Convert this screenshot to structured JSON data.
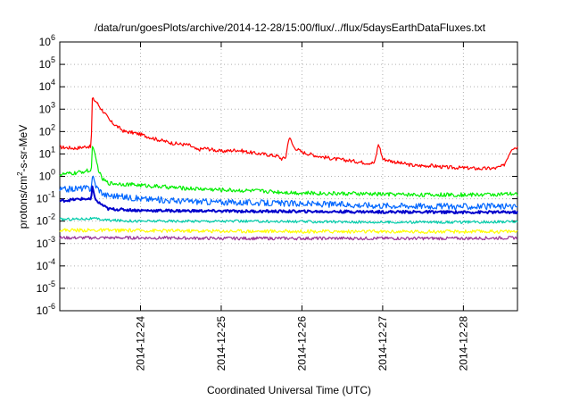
{
  "chart_data": {
    "type": "line",
    "title": "/data/run/goesPlots/archive/2014-12-28/15:00/flux/../flux/5daysEarthDataFluxes.txt",
    "xlabel": "Coordinated Universal Time (UTC)",
    "ylabel": {
      "prefix": "protons/cm",
      "sup": "2",
      "suffix": "-s-sr-MeV"
    },
    "y_scale": "log",
    "ylim": [
      1e-06,
      1000000.0
    ],
    "xlim": [
      0,
      5.67
    ],
    "grid": true,
    "legend": "none",
    "y_ticks": [
      {
        "value": 1e-06,
        "base": "10",
        "exp": "-6"
      },
      {
        "value": 1e-05,
        "base": "10",
        "exp": "-5"
      },
      {
        "value": 0.0001,
        "base": "10",
        "exp": "-4"
      },
      {
        "value": 0.001,
        "base": "10",
        "exp": "-3"
      },
      {
        "value": 0.01,
        "base": "10",
        "exp": "-2"
      },
      {
        "value": 0.1,
        "base": "10",
        "exp": "-1"
      },
      {
        "value": 1,
        "base": "10",
        "exp": "0"
      },
      {
        "value": 10,
        "base": "10",
        "exp": "1"
      },
      {
        "value": 100,
        "base": "10",
        "exp": "2"
      },
      {
        "value": 1000,
        "base": "10",
        "exp": "3"
      },
      {
        "value": 10000,
        "base": "10",
        "exp": "4"
      },
      {
        "value": 100000,
        "base": "10",
        "exp": "5"
      },
      {
        "value": 1000000,
        "base": "10",
        "exp": "6"
      }
    ],
    "x_ticks": [
      {
        "value": 1.0,
        "label": "2014-12-24"
      },
      {
        "value": 2.0,
        "label": "2014-12-25"
      },
      {
        "value": 3.0,
        "label": "2014-12-26"
      },
      {
        "value": 4.0,
        "label": "2014-12-27"
      },
      {
        "value": 5.0,
        "label": "2014-12-28"
      }
    ],
    "series": [
      {
        "color": "#ff0000",
        "points": [
          [
            0,
            20
          ],
          [
            0.2,
            18
          ],
          [
            0.35,
            22
          ],
          [
            0.39,
            20
          ],
          [
            0.4,
            3000
          ],
          [
            0.45,
            2200
          ],
          [
            0.5,
            1200
          ],
          [
            0.55,
            700
          ],
          [
            0.62,
            300
          ],
          [
            0.7,
            180
          ],
          [
            0.8,
            100
          ],
          [
            0.9,
            90
          ],
          [
            1.0,
            75
          ],
          [
            1.2,
            45
          ],
          [
            1.4,
            30
          ],
          [
            1.6,
            25
          ],
          [
            1.7,
            15
          ],
          [
            1.8,
            18
          ],
          [
            2.0,
            13
          ],
          [
            2.2,
            15
          ],
          [
            2.4,
            11
          ],
          [
            2.5,
            10
          ],
          [
            2.6,
            9
          ],
          [
            2.7,
            8
          ],
          [
            2.75,
            6
          ],
          [
            2.8,
            7
          ],
          [
            2.84,
            60
          ],
          [
            2.9,
            20
          ],
          [
            3.0,
            12
          ],
          [
            3.2,
            8
          ],
          [
            3.4,
            6
          ],
          [
            3.6,
            5
          ],
          [
            3.8,
            4
          ],
          [
            3.9,
            4
          ],
          [
            3.95,
            30
          ],
          [
            4.0,
            6
          ],
          [
            4.2,
            4
          ],
          [
            4.4,
            3
          ],
          [
            4.6,
            3
          ],
          [
            4.8,
            2.5
          ],
          [
            5.0,
            2.4
          ],
          [
            5.2,
            2.2
          ],
          [
            5.4,
            2.3
          ],
          [
            5.5,
            3
          ],
          [
            5.6,
            18
          ],
          [
            5.67,
            20
          ]
        ]
      },
      {
        "color": "#00ee00",
        "points": [
          [
            0,
            1.2
          ],
          [
            0.2,
            1.4
          ],
          [
            0.35,
            1.8
          ],
          [
            0.39,
            1.5
          ],
          [
            0.4,
            25
          ],
          [
            0.43,
            10
          ],
          [
            0.48,
            2
          ],
          [
            0.52,
            0.8
          ],
          [
            0.6,
            0.5
          ],
          [
            0.8,
            0.45
          ],
          [
            1.0,
            0.4
          ],
          [
            1.5,
            0.3
          ],
          [
            2.0,
            0.25
          ],
          [
            2.5,
            0.22
          ],
          [
            3.0,
            0.18
          ],
          [
            3.5,
            0.17
          ],
          [
            4.0,
            0.16
          ],
          [
            4.5,
            0.15
          ],
          [
            5.0,
            0.15
          ],
          [
            5.67,
            0.16
          ]
        ]
      },
      {
        "color": "#0066ff",
        "points": [
          [
            0,
            0.25
          ],
          [
            0.3,
            0.3
          ],
          [
            0.39,
            0.28
          ],
          [
            0.4,
            1.2
          ],
          [
            0.45,
            0.35
          ],
          [
            0.55,
            0.15
          ],
          [
            0.8,
            0.12
          ],
          [
            1.0,
            0.1
          ],
          [
            1.5,
            0.08
          ],
          [
            2.0,
            0.07
          ],
          [
            2.5,
            0.065
          ],
          [
            3.0,
            0.06
          ],
          [
            3.5,
            0.055
          ],
          [
            4.0,
            0.05
          ],
          [
            4.5,
            0.048
          ],
          [
            5.0,
            0.045
          ],
          [
            5.67,
            0.045
          ]
        ]
      },
      {
        "color": "#0000cc",
        "points": [
          [
            0,
            0.08
          ],
          [
            0.3,
            0.1
          ],
          [
            0.39,
            0.09
          ],
          [
            0.4,
            0.35
          ],
          [
            0.45,
            0.08
          ],
          [
            0.6,
            0.035
          ],
          [
            1.0,
            0.03
          ],
          [
            2.0,
            0.028
          ],
          [
            3.0,
            0.027
          ],
          [
            4.0,
            0.026
          ],
          [
            5.0,
            0.025
          ],
          [
            5.67,
            0.025
          ]
        ]
      },
      {
        "color": "#00ccaa",
        "points": [
          [
            0,
            0.012
          ],
          [
            0.4,
            0.013
          ],
          [
            0.6,
            0.011
          ],
          [
            1.0,
            0.01
          ],
          [
            2.0,
            0.01
          ],
          [
            3.0,
            0.0095
          ],
          [
            4.0,
            0.009
          ],
          [
            5.0,
            0.009
          ],
          [
            5.67,
            0.0095
          ]
        ]
      },
      {
        "color": "#ffff00",
        "points": [
          [
            0,
            0.004
          ],
          [
            1.0,
            0.0038
          ],
          [
            2.0,
            0.0036
          ],
          [
            3.0,
            0.0035
          ],
          [
            4.0,
            0.0034
          ],
          [
            5.0,
            0.0034
          ],
          [
            5.67,
            0.0035
          ]
        ]
      },
      {
        "color": "#993399",
        "points": [
          [
            0,
            0.0018
          ],
          [
            1.0,
            0.0018
          ],
          [
            2.0,
            0.0017
          ],
          [
            3.0,
            0.0017
          ],
          [
            4.0,
            0.0017
          ],
          [
            5.0,
            0.0017
          ],
          [
            5.67,
            0.0018
          ]
        ]
      }
    ]
  }
}
